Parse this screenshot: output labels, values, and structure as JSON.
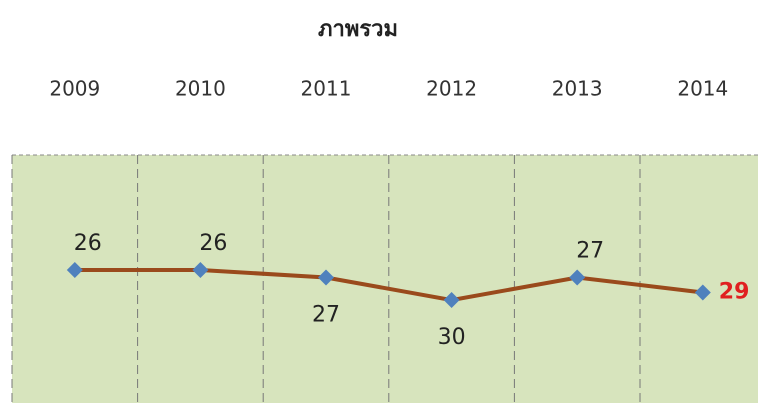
{
  "chart_data": {
    "type": "line",
    "title": "ภาพรวม",
    "categories": [
      "2009",
      "2010",
      "2011",
      "2012",
      "2013",
      "2014"
    ],
    "series": [
      {
        "color": "#9a4a1c",
        "marker_color": "#4f81bd",
        "values": [
          26,
          26,
          27,
          30,
          27,
          29
        ]
      }
    ],
    "ylim": [
      10.7,
      43.7
    ],
    "y_reversed": true,
    "grid": true,
    "background": "#d7e4bd"
  }
}
